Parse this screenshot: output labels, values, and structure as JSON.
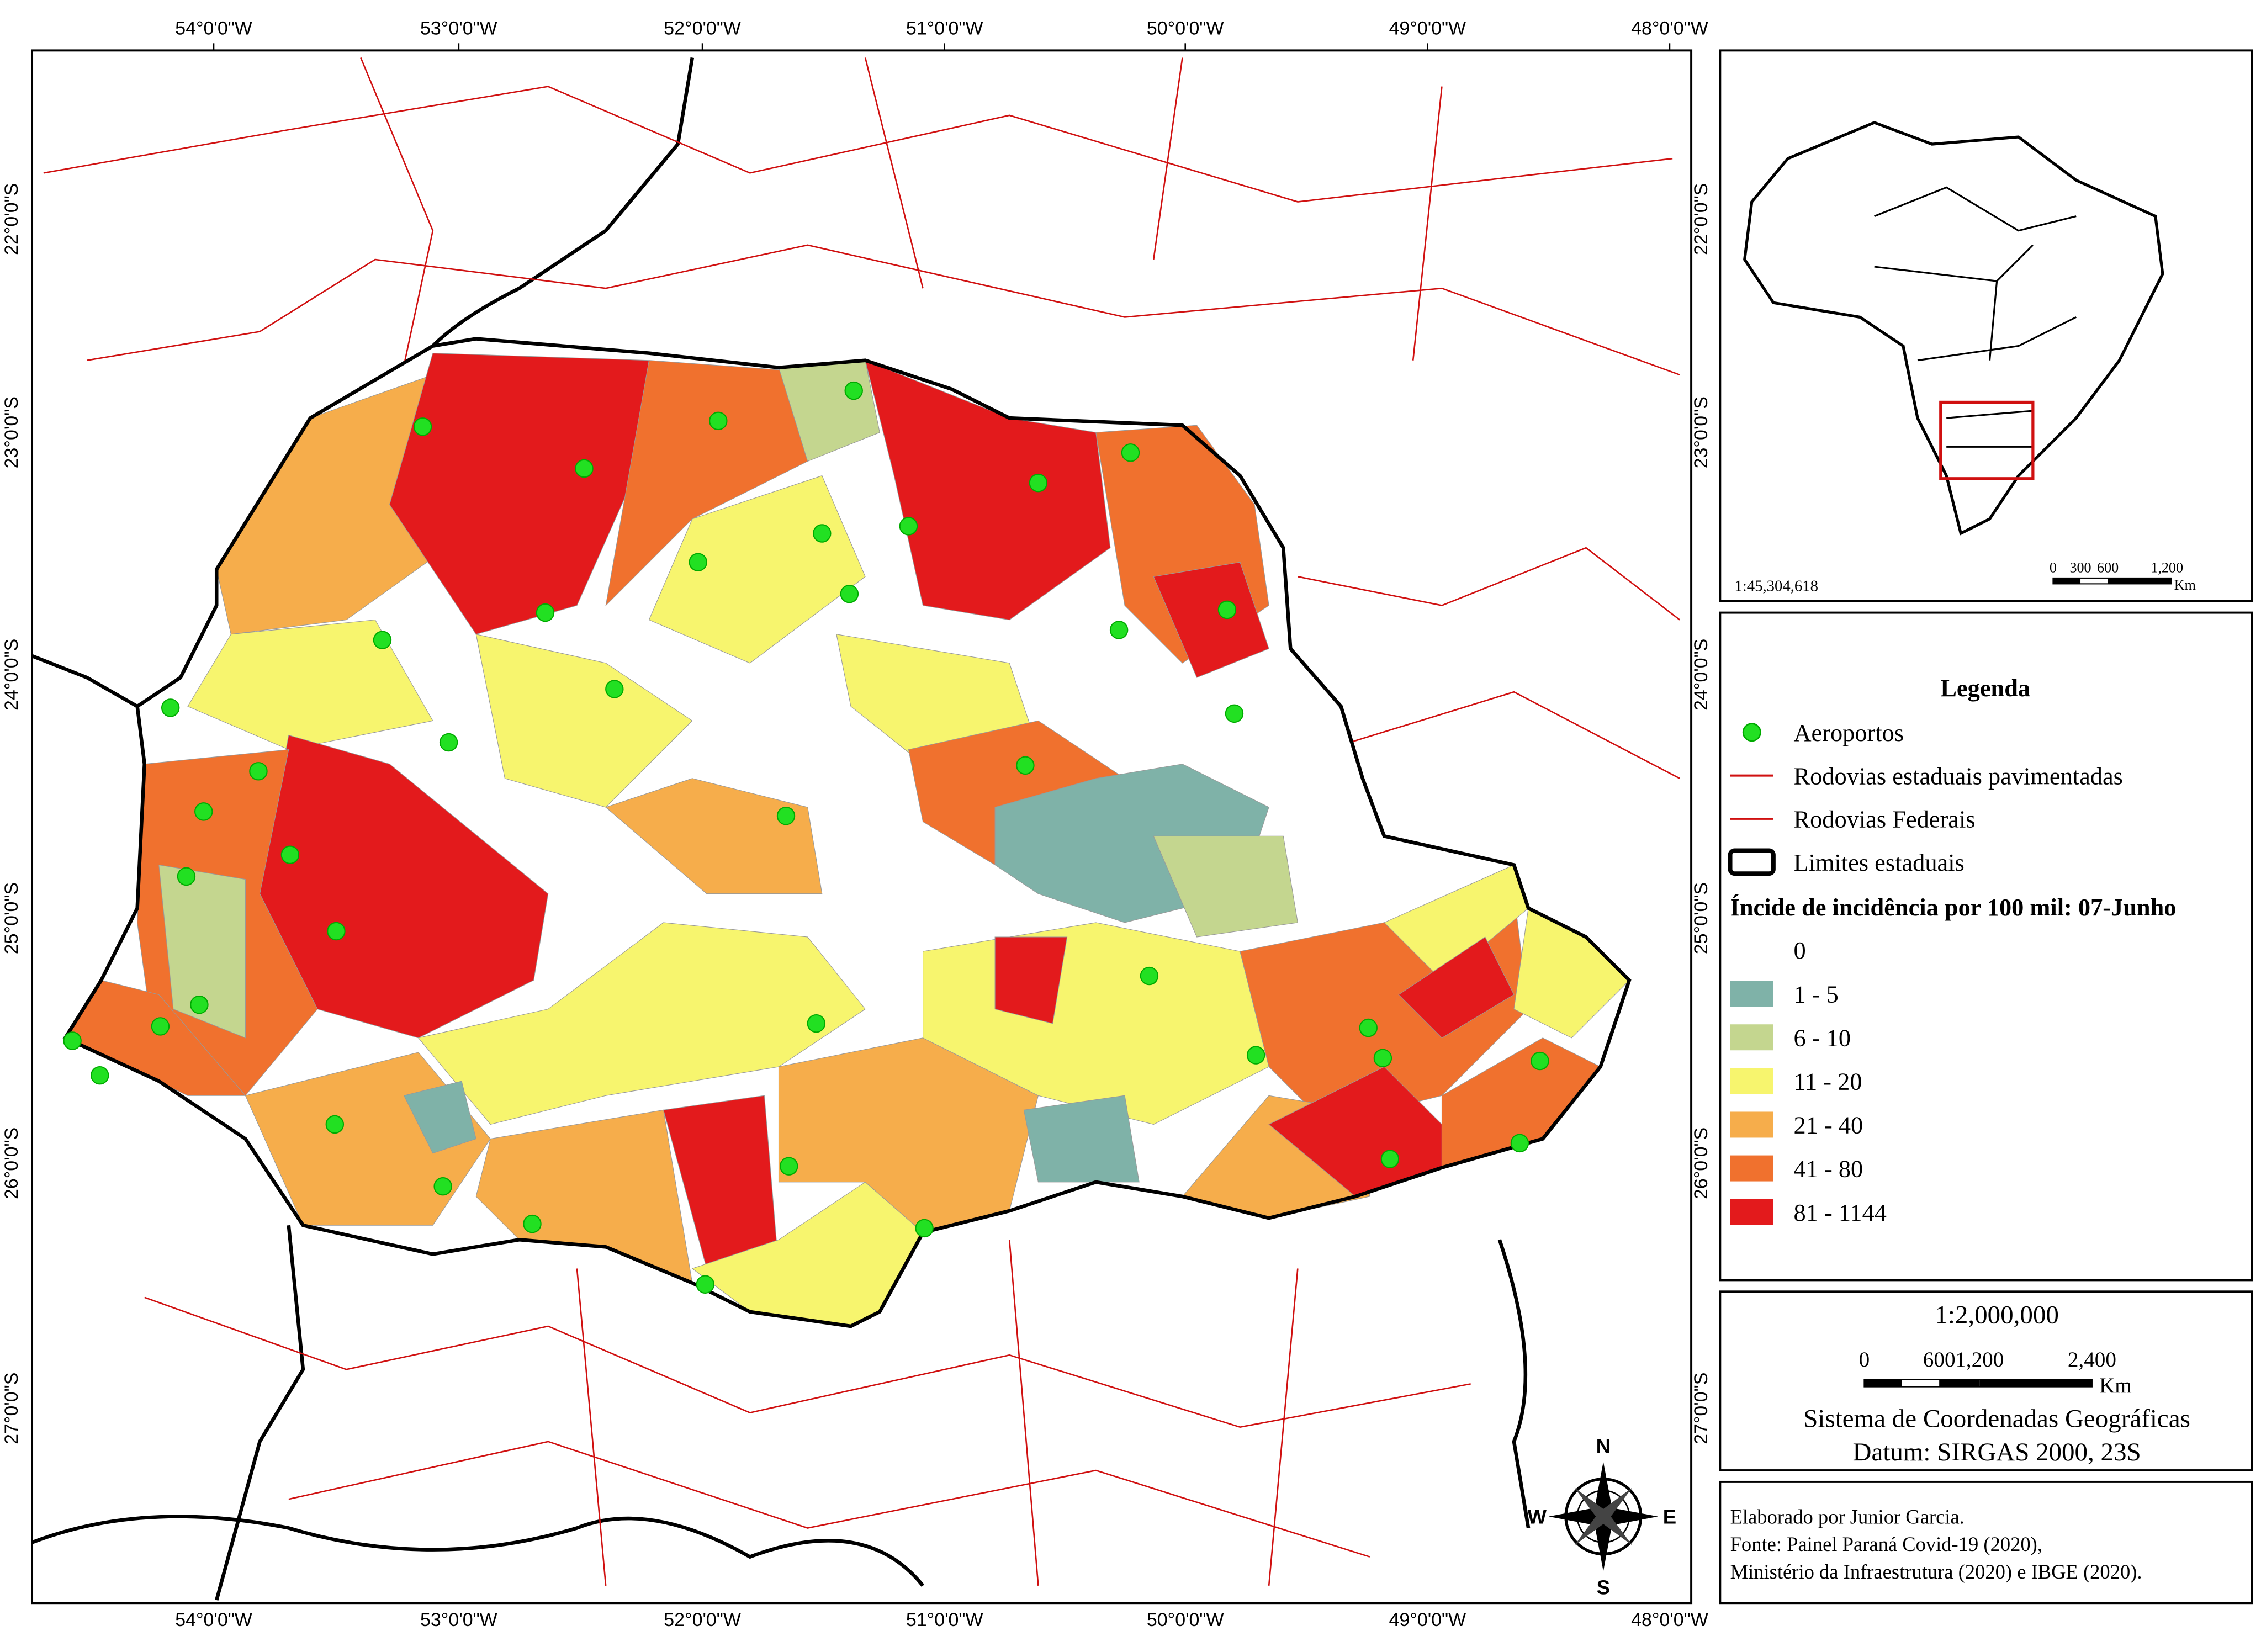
{
  "map": {
    "lon_labels": [
      "54°0'0\"W",
      "53°0'0\"W",
      "52°0'0\"W",
      "51°0'0\"W",
      "50°0'0\"W",
      "49°0'0\"W",
      "48°0'0\"W"
    ],
    "lat_labels": [
      "22°0'0\"S",
      "23°0'0\"S",
      "24°0'0\"S",
      "25°0'0\"S",
      "26°0'0\"S",
      "27°0'0\"S"
    ]
  },
  "compass": {
    "n": "N",
    "s": "S",
    "e": "E",
    "w": "W"
  },
  "inset": {
    "scale": "1:45,304,618",
    "scale_bar": [
      "0",
      "300",
      "600",
      "1,200"
    ],
    "unit": "Km"
  },
  "legend": {
    "title": "Legenda",
    "items": [
      {
        "label": "Aeroportos",
        "symbol": "point",
        "color": "#22e022"
      },
      {
        "label": "Rodovias estaduais pavimentadas",
        "symbol": "line",
        "color": "#d01010"
      },
      {
        "label": "Rodovias Federais",
        "symbol": "line",
        "color": "#d01010"
      },
      {
        "label": "Limites estaduais",
        "symbol": "box",
        "color": "#000000"
      }
    ],
    "class_title": "Íncide de incidência por 100 mil: 07-Junho",
    "classes": [
      {
        "label": "0",
        "color": "#ffffff"
      },
      {
        "label": "1 - 5",
        "color": "#7fb2a8"
      },
      {
        "label": "6 - 10",
        "color": "#c4d68f"
      },
      {
        "label": "11 - 20",
        "color": "#f7f56e"
      },
      {
        "label": "21 - 40",
        "color": "#f6ad4b"
      },
      {
        "label": "41 - 80",
        "color": "#f0712e"
      },
      {
        "label": "81 - 1144",
        "color": "#e31a1c"
      }
    ]
  },
  "scale": {
    "ratio": "1:2,000,000",
    "bar_labels": [
      "0",
      "600",
      "1,200",
      "2,400"
    ],
    "unit": "Km",
    "crs": "Sistema de Coordenadas Geográficas",
    "datum": "Datum: SIRGAS 2000, 23S"
  },
  "credits": [
    "Elaborado por Junior Garcia.",
    "Fonte: Painel Paraná Covid-19 (2020),",
    "Ministério da Infraestrutura (2020) e IBGE (2020)."
  ]
}
